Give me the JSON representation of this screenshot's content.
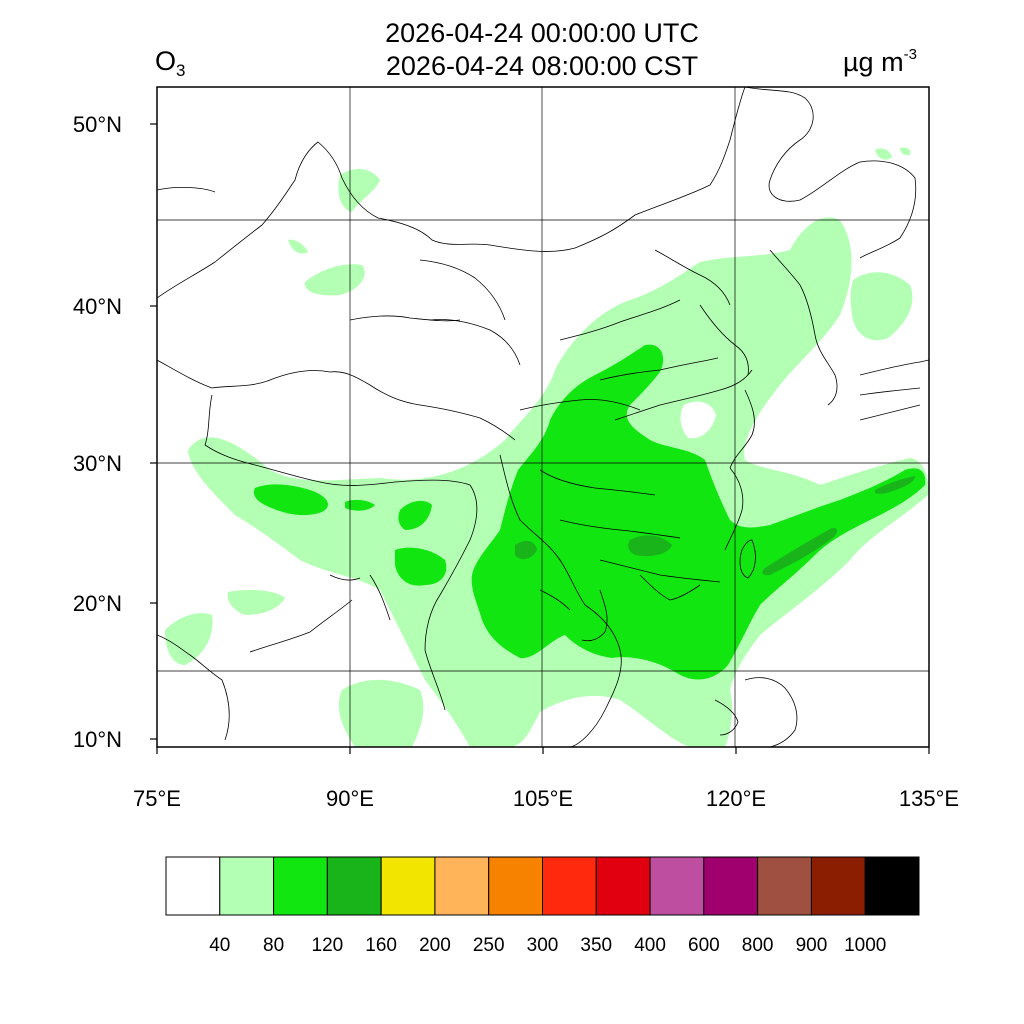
{
  "header": {
    "title_utc": "2026-04-24 00:00:00 UTC",
    "title_cst": "2026-04-24 08:00:00 CST",
    "species_main": "O",
    "species_sub": "3",
    "units_main": "µg m",
    "units_sup": "-3"
  },
  "map": {
    "lon_range": [
      75,
      135
    ],
    "lat_range": [
      9,
      52
    ],
    "lon_ticks": [
      {
        "value": 75,
        "label": "75°E"
      },
      {
        "value": 90,
        "label": "90°E"
      },
      {
        "value": 105,
        "label": "105°E"
      },
      {
        "value": 120,
        "label": "120°E"
      },
      {
        "value": 135,
        "label": "135°E"
      }
    ],
    "lat_ticks": [
      {
        "value": 50,
        "label": "50°N"
      },
      {
        "value": 40,
        "label": "40°N"
      },
      {
        "value": 30,
        "label": "30°N"
      },
      {
        "value": 20,
        "label": "20°N"
      },
      {
        "value": 10,
        "label": "10°N"
      }
    ],
    "grid": true
  },
  "colorbar": {
    "colors": [
      "#ffffff",
      "#b3ffb3",
      "#11e611",
      "#19b419",
      "#f2e600",
      "#ffb45a",
      "#f78200",
      "#ff2a0e",
      "#e1000f",
      "#be4fa0",
      "#a0006e",
      "#a05040",
      "#8c1e00",
      "#000000"
    ],
    "labels": [
      "40",
      "80",
      "120",
      "160",
      "200",
      "250",
      "300",
      "350",
      "400",
      "600",
      "800",
      "900",
      "1000"
    ]
  },
  "field_colors": {
    "light": "#b3ffb3",
    "medium": "#11e611",
    "dark": "#19b419"
  }
}
